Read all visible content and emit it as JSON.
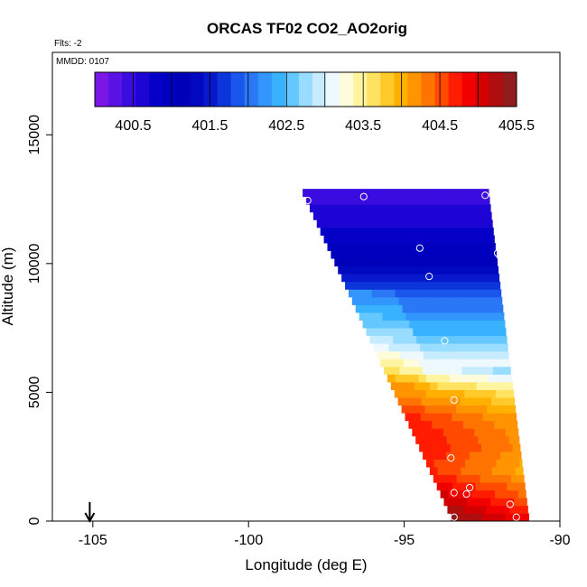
{
  "chart_data": {
    "type": "heatmap",
    "title": "ORCAS TF02 CO2_AO2orig",
    "flights_label": "Flts: -2",
    "date_label": "MMDD: 0107",
    "xlabel": "Longitude (deg E)",
    "ylabel": "Altitude (m)",
    "xlim": [
      -106.3,
      -90
    ],
    "ylim": [
      0,
      18200
    ],
    "xticks": [
      -105,
      -100,
      -95,
      -90
    ],
    "xtick_labels": [
      "-105",
      "-100",
      "-95",
      "-90"
    ],
    "yticks": [
      0,
      5000,
      10000,
      15000
    ],
    "ytick_labels": [
      "0",
      "5000",
      "10000",
      "15000"
    ],
    "colorbar": {
      "min": 400,
      "max": 405.5,
      "tick_values": [
        400.5,
        401.5,
        402.5,
        403.5,
        404.5,
        405.5
      ],
      "tick_labels": [
        "400.5",
        "401.5",
        "402.5",
        "403.5",
        "404.5",
        "405.5"
      ],
      "colors": [
        "#7b16e8",
        "#5b12e4",
        "#3a0ce0",
        "#1c04d4",
        "#0400c8",
        "#0000be",
        "#0000b8",
        "#0008c0",
        "#0818cc",
        "#0c36dc",
        "#1a56ec",
        "#2b78f6",
        "#3296fc",
        "#38b2ff",
        "#64c8ff",
        "#98dcff",
        "#c8ecff",
        "#eef8ff",
        "#fffcdc",
        "#fff4a0",
        "#ffe260",
        "#ffca2a",
        "#ffb000",
        "#ff9400",
        "#ff7400",
        "#ff4a00",
        "#ff1c00",
        "#f20000",
        "#d20000",
        "#ae0e0e",
        "#921c1c"
      ]
    },
    "surface_arrow_longitude": -105.1,
    "field": {
      "lon_left_edge_top": -98.3,
      "lon_left_edge_bottom": -93.5,
      "lon_right_edge_top": -92.3,
      "lon_right_edge_bottom": -91.0,
      "alt_top": 12700,
      "alt_bottom": 0,
      "values_by_altitude": [
        {
          "alt": 0,
          "co2": 405.4
        },
        {
          "alt": 1000,
          "co2": 405.0
        },
        {
          "alt": 2000,
          "co2": 404.6
        },
        {
          "alt": 3000,
          "co2": 404.8
        },
        {
          "alt": 4000,
          "co2": 404.7
        },
        {
          "alt": 5000,
          "co2": 404.2
        },
        {
          "alt": 6000,
          "co2": 403.2
        },
        {
          "alt": 7000,
          "co2": 402.6
        },
        {
          "alt": 8000,
          "co2": 402.2
        },
        {
          "alt": 9000,
          "co2": 401.8
        },
        {
          "alt": 10000,
          "co2": 401.2
        },
        {
          "alt": 11000,
          "co2": 400.8
        },
        {
          "alt": 12000,
          "co2": 400.6
        },
        {
          "alt": 12700,
          "co2": 400.4
        }
      ]
    },
    "sample_points": [
      {
        "lon": -96.3,
        "alt": 12600
      },
      {
        "lon": -92.4,
        "alt": 12650
      },
      {
        "lon": -98.1,
        "alt": 12450
      },
      {
        "lon": -94.5,
        "alt": 10600
      },
      {
        "lon": -92.0,
        "alt": 10400
      },
      {
        "lon": -94.2,
        "alt": 9500
      },
      {
        "lon": -91.5,
        "alt": 7800
      },
      {
        "lon": -93.7,
        "alt": 7000
      },
      {
        "lon": -91.0,
        "alt": 6200
      },
      {
        "lon": -93.4,
        "alt": 4700
      },
      {
        "lon": -90.8,
        "alt": 4500
      },
      {
        "lon": -93.5,
        "alt": 2450
      },
      {
        "lon": -90.9,
        "alt": 1550
      },
      {
        "lon": -92.9,
        "alt": 1300
      },
      {
        "lon": -93.4,
        "alt": 1100
      },
      {
        "lon": -93.0,
        "alt": 1050
      },
      {
        "lon": -91.6,
        "alt": 650
      },
      {
        "lon": -93.4,
        "alt": 150
      },
      {
        "lon": -91.4,
        "alt": 150
      }
    ]
  }
}
